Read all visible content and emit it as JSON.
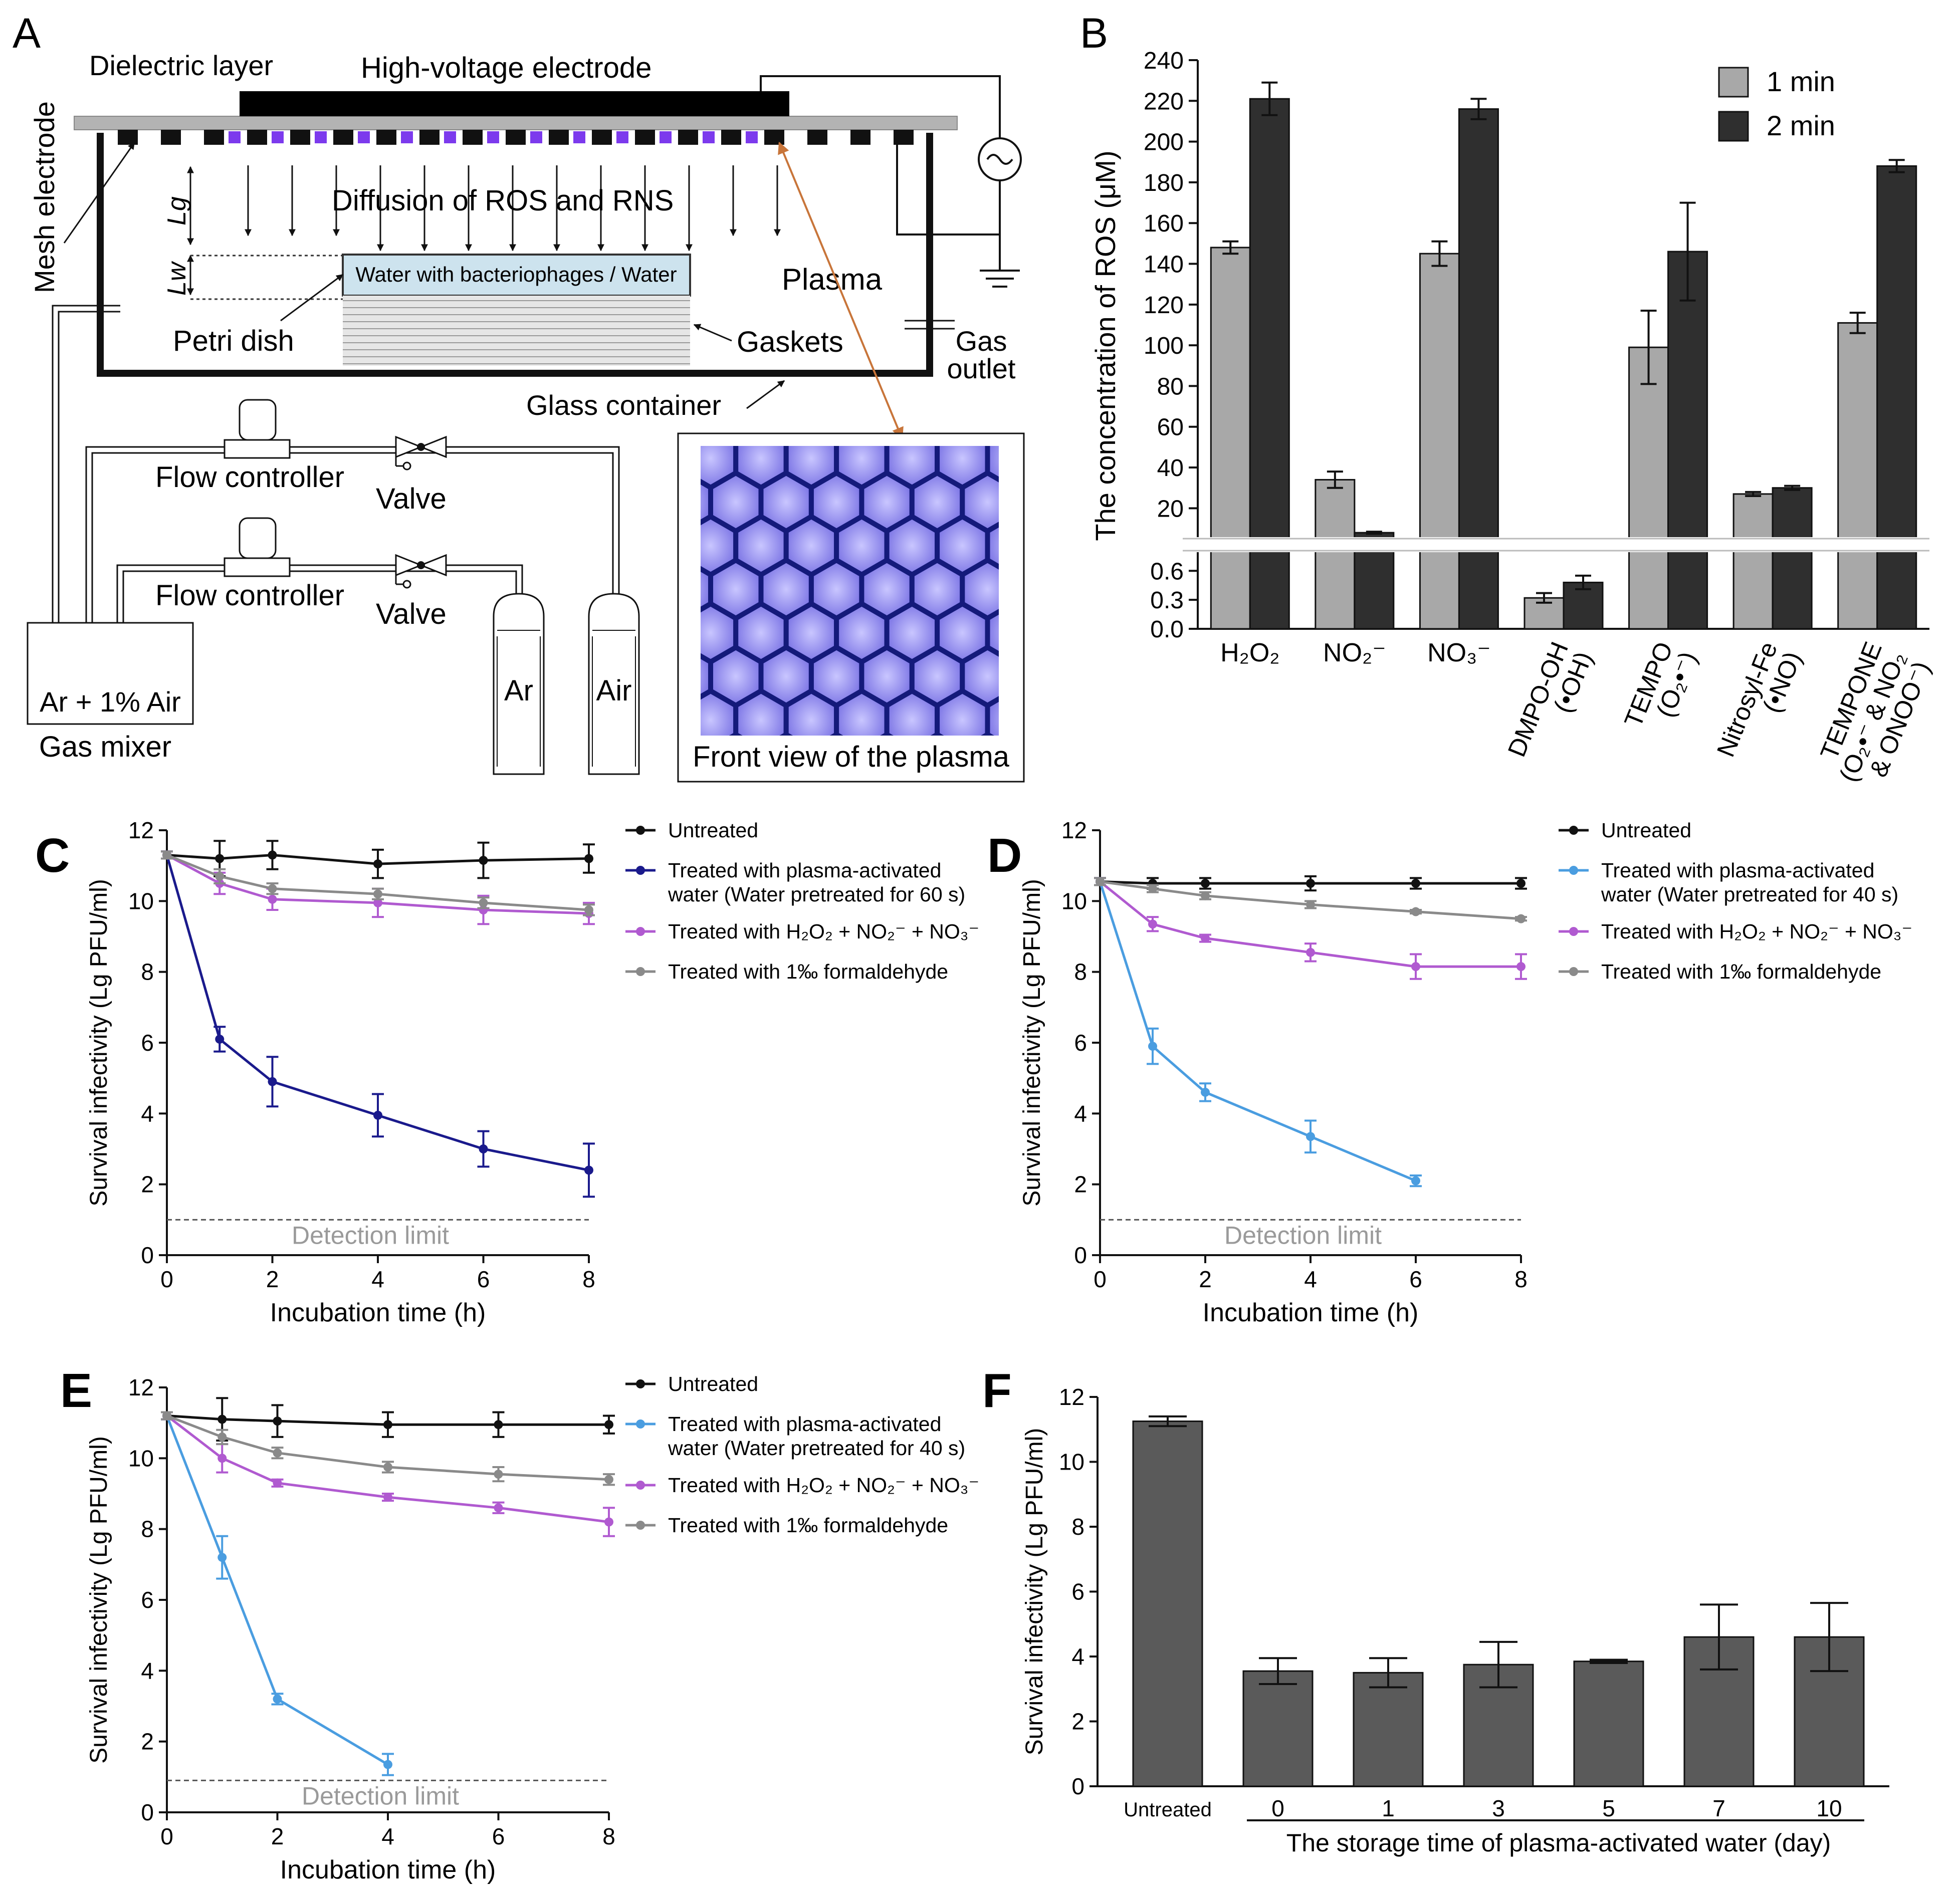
{
  "panels": {
    "A": {
      "letter": "A",
      "dielectric_layer": "Dielectric layer",
      "hv_electrode": "High-voltage electrode",
      "mesh_electrode": "Mesh electrode",
      "diffusion": "Diffusion of ROS and RNS",
      "lg": "Lg",
      "lw": "Lw",
      "water": "Water with bacteriophages / Water",
      "plasma": "Plasma",
      "petri_dish": "Petri dish",
      "gaskets": "Gaskets",
      "gas": "Gas",
      "outlet": "outlet",
      "glass_container": "Glass container",
      "flow_controller_1": "Flow controller",
      "valve_1": "Valve",
      "flow_controller_2": "Flow controller",
      "valve_2": "Valve",
      "mixture": "Ar + 1% Air",
      "gas_mixer": "Gas mixer",
      "ar": "Ar",
      "air": "Air",
      "front_view": "Front view of the plasma",
      "colors": {
        "purple": "#7c3aed",
        "water": "#cde3ee",
        "glow": "#8b86ee",
        "mesh": "#141a7a",
        "arrow": "#c8753a"
      }
    }
  },
  "chart_data": [
    {
      "panel": "B",
      "type": "bar",
      "ylabel": "The concentration of ROS (μM)",
      "legend": [
        "1 min",
        "2 min"
      ],
      "colors": [
        "#a8a8a8",
        "#2f2f2f"
      ],
      "y_ticks_upper": [
        "20",
        "40",
        "60",
        "80",
        "100",
        "120",
        "140",
        "160",
        "180",
        "200",
        "220",
        "240"
      ],
      "y_ticks_lower": [
        "0.0",
        "0.3",
        "0.6"
      ],
      "ylim_upper": [
        10,
        240
      ],
      "ylim_lower": [
        0,
        0.7
      ],
      "categories": [
        {
          "label": "H₂O₂",
          "lines": [
            "H₂O₂"
          ],
          "v1": 148,
          "e1": 3,
          "v2": 221,
          "e2": 8,
          "scale": "upper"
        },
        {
          "label": "NO₂⁻",
          "lines": [
            "NO₂⁻"
          ],
          "v1": 34,
          "e1": 4,
          "v2": 8,
          "e2": 0.5,
          "scale": "upper"
        },
        {
          "label": "NO₃⁻",
          "lines": [
            "NO₃⁻"
          ],
          "v1": 145,
          "e1": 6,
          "v2": 216,
          "e2": 5,
          "scale": "upper"
        },
        {
          "label": "DMPO-OH (•OH)",
          "lines": [
            "DMPO-OH",
            "(•OH)"
          ],
          "v1": 0.32,
          "e1": 0.05,
          "v2": 0.48,
          "e2": 0.07,
          "scale": "lower"
        },
        {
          "label": "TEMPO (O₂•⁻)",
          "lines": [
            "TEMPO",
            "(O₂•⁻)"
          ],
          "v1": 99,
          "e1": 18,
          "v2": 146,
          "e2": 24,
          "scale": "upper"
        },
        {
          "label": "Nitrosyl-Fe (•NO)",
          "lines": [
            "Nitrosyl-Fe",
            "(•NO)"
          ],
          "v1": 27,
          "e1": 1,
          "v2": 30,
          "e2": 1,
          "scale": "upper"
        },
        {
          "label": "TEMPONE (O₂•⁻ & NO₂ & ONOO⁻)",
          "lines": [
            "TEMPONE",
            "(O₂•⁻ & NO₂",
            "& ONOO⁻)"
          ],
          "v1": 111,
          "e1": 5,
          "v2": 188,
          "e2": 3,
          "scale": "upper"
        }
      ]
    },
    {
      "panel": "C",
      "type": "line",
      "xlabel": "Incubation time (h)",
      "ylabel": "Survival infectivity (Lg PFU/ml)",
      "xlim": [
        0,
        8
      ],
      "ylim": [
        0,
        12
      ],
      "xticks": [
        0,
        2,
        4,
        6,
        8
      ],
      "yticks": [
        0,
        2,
        4,
        6,
        8,
        10,
        12
      ],
      "detection_limit": 1.0,
      "detection_label": "Detection limit",
      "series": [
        {
          "name": "Untreated",
          "color": "#111111",
          "x": [
            0,
            1,
            2,
            4,
            6,
            8
          ],
          "y": [
            11.3,
            11.2,
            11.3,
            11.05,
            11.15,
            11.2
          ],
          "err": [
            0.1,
            0.5,
            0.4,
            0.4,
            0.5,
            0.4
          ]
        },
        {
          "name": "Treated with plasma-activated water (Water pretreated for 60 s)",
          "legend_lines": [
            "Treated with plasma-activated",
            "water (Water pretreated for 60 s)"
          ],
          "color": "#1a1a8c",
          "x": [
            0,
            1,
            2,
            4,
            6,
            8
          ],
          "y": [
            11.3,
            6.1,
            4.9,
            3.95,
            3.0,
            2.4
          ],
          "err": [
            0.1,
            0.35,
            0.7,
            0.6,
            0.5,
            0.75
          ]
        },
        {
          "name": "Treated with H₂O₂ + NO₂⁻ + NO₃⁻",
          "color": "#b05ad0",
          "x": [
            0,
            1,
            2,
            4,
            6,
            8
          ],
          "y": [
            11.3,
            10.5,
            10.05,
            9.95,
            9.75,
            9.65
          ],
          "err": [
            0.1,
            0.3,
            0.3,
            0.4,
            0.4,
            0.3
          ]
        },
        {
          "name": "Treated with 1‰ formaldehyde",
          "color": "#8a8a8a",
          "x": [
            0,
            1,
            2,
            4,
            6,
            8
          ],
          "y": [
            11.3,
            10.7,
            10.35,
            10.2,
            9.95,
            9.75
          ],
          "err": [
            0.1,
            0.2,
            0.15,
            0.15,
            0.15,
            0.15
          ]
        }
      ]
    },
    {
      "panel": "D",
      "type": "line",
      "xlabel": "Incubation time (h)",
      "ylabel": "Survival infectivity (Lg PFU/ml)",
      "xlim": [
        0,
        8
      ],
      "ylim": [
        0,
        12
      ],
      "xticks": [
        0,
        2,
        4,
        6,
        8
      ],
      "yticks": [
        0,
        2,
        4,
        6,
        8,
        10,
        12
      ],
      "detection_limit": 1.0,
      "detection_label": "Detection limit",
      "series": [
        {
          "name": "Untreated",
          "color": "#111111",
          "x": [
            0,
            1,
            2,
            4,
            6,
            8
          ],
          "y": [
            10.55,
            10.5,
            10.5,
            10.5,
            10.5,
            10.5
          ],
          "err": [
            0.1,
            0.15,
            0.15,
            0.2,
            0.15,
            0.15
          ]
        },
        {
          "name": "Treated with plasma-activated water (Water pretreated for 40 s)",
          "legend_lines": [
            "Treated with plasma-activated",
            "water (Water pretreated for 40 s)"
          ],
          "color": "#4a9de0",
          "x": [
            0,
            1,
            2,
            4,
            6
          ],
          "y": [
            10.55,
            5.9,
            4.6,
            3.35,
            2.1
          ],
          "err": [
            0.1,
            0.5,
            0.25,
            0.45,
            0.15
          ]
        },
        {
          "name": "Treated with H₂O₂ + NO₂⁻ + NO₃⁻",
          "color": "#b05ad0",
          "x": [
            0,
            1,
            2,
            4,
            6,
            8
          ],
          "y": [
            10.55,
            9.35,
            8.95,
            8.55,
            8.15,
            8.15
          ],
          "err": [
            0.1,
            0.2,
            0.1,
            0.25,
            0.35,
            0.35
          ]
        },
        {
          "name": "Treated with 1‰ formaldehyde",
          "color": "#8a8a8a",
          "x": [
            0,
            1,
            2,
            4,
            6,
            8
          ],
          "y": [
            10.55,
            10.35,
            10.15,
            9.9,
            9.7,
            9.5
          ],
          "err": [
            0.1,
            0.1,
            0.1,
            0.1,
            0.05,
            0.05
          ]
        }
      ]
    },
    {
      "panel": "E",
      "type": "line",
      "xlabel": "Incubation time (h)",
      "ylabel": "Survival infectivity (Lg PFU/ml)",
      "xlim": [
        0,
        8
      ],
      "ylim": [
        0,
        12
      ],
      "xticks": [
        0,
        2,
        4,
        6,
        8
      ],
      "yticks": [
        0,
        2,
        4,
        6,
        8,
        10,
        12
      ],
      "detection_limit": 0.9,
      "detection_label": "Detection limit",
      "series": [
        {
          "name": "Untreated",
          "color": "#111111",
          "x": [
            0,
            1,
            2,
            4,
            6,
            8
          ],
          "y": [
            11.2,
            11.1,
            11.05,
            10.95,
            10.95,
            10.95
          ],
          "err": [
            0.1,
            0.6,
            0.45,
            0.35,
            0.35,
            0.25
          ]
        },
        {
          "name": "Treated with plasma-activated water (Water pretreated for 40 s)",
          "legend_lines": [
            "Treated with plasma-activated",
            "water (Water pretreated for 40 s)"
          ],
          "color": "#4a9de0",
          "x": [
            0,
            1,
            2,
            4
          ],
          "y": [
            11.2,
            7.2,
            3.2,
            1.35
          ],
          "err": [
            0.1,
            0.6,
            0.15,
            0.3
          ]
        },
        {
          "name": "Treated with H₂O₂ + NO₂⁻ + NO₃⁻",
          "color": "#b05ad0",
          "x": [
            0,
            1,
            2,
            4,
            6,
            8
          ],
          "y": [
            11.2,
            10.0,
            9.3,
            8.9,
            8.6,
            8.2
          ],
          "err": [
            0.1,
            0.4,
            0.1,
            0.1,
            0.15,
            0.4
          ]
        },
        {
          "name": "Treated with 1‰ formaldehyde",
          "color": "#8a8a8a",
          "x": [
            0,
            1,
            2,
            4,
            6,
            8
          ],
          "y": [
            11.2,
            10.6,
            10.15,
            9.75,
            9.55,
            9.4
          ],
          "err": [
            0.1,
            0.2,
            0.15,
            0.15,
            0.2,
            0.15
          ]
        }
      ]
    },
    {
      "panel": "F",
      "type": "bar",
      "ylabel": "Survival infectivity (Lg PFU/ml)",
      "xlabel": "The storage time of plasma-activated water (day)",
      "ylim": [
        0,
        12
      ],
      "yticks": [
        0,
        2,
        4,
        6,
        8,
        10,
        12
      ],
      "color": "#5a5a5a",
      "categories": [
        "Untreated",
        "0",
        "1",
        "3",
        "5",
        "7",
        "10"
      ],
      "values": [
        11.25,
        3.55,
        3.5,
        3.75,
        3.85,
        4.6,
        4.6
      ],
      "err": [
        0.15,
        0.4,
        0.45,
        0.7,
        0.05,
        1.0,
        1.05
      ]
    }
  ]
}
